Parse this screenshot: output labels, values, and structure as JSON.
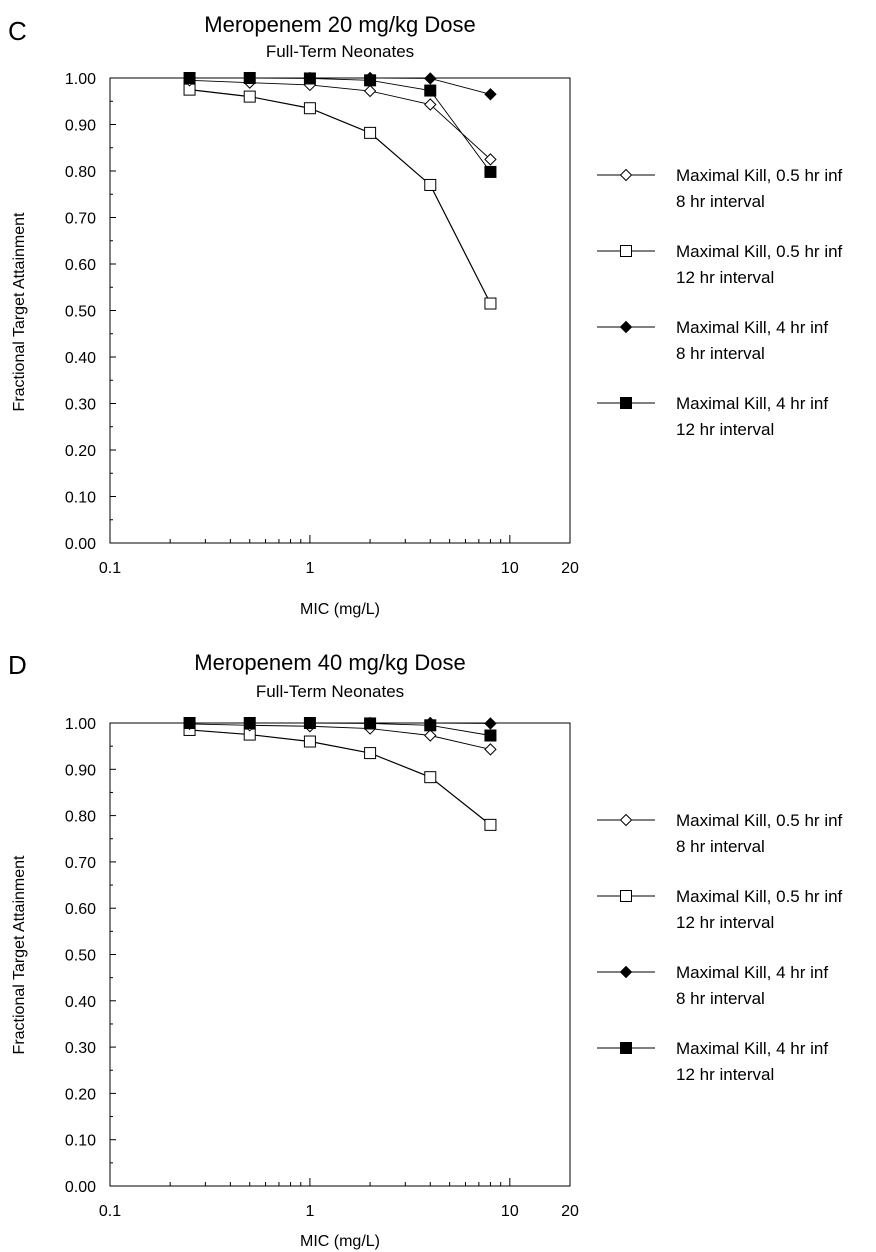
{
  "chart_data": [
    {
      "type": "line",
      "panel_label": "C",
      "title": "Meropenem 20 mg/kg Dose",
      "subtitle": "Full-Term Neonates",
      "xlabel": "MIC (mg/L)",
      "ylabel": "Fractional Target Attainment",
      "x_scale": "log",
      "xlim": [
        0.1,
        20
      ],
      "ylim": [
        0,
        1
      ],
      "x_tick_labels": [
        "0.1",
        "1",
        "10",
        "20"
      ],
      "y_tick_labels": [
        "0.00",
        "0.10",
        "0.20",
        "0.30",
        "0.40",
        "0.50",
        "0.60",
        "0.70",
        "0.80",
        "0.90",
        "1.00"
      ],
      "grid": false,
      "legend_position": "right",
      "x": [
        0.25,
        0.5,
        1,
        2,
        4,
        8
      ],
      "series": [
        {
          "name": "Maximal Kill, 0.5 hr inf",
          "name_line2": "8 hr interval",
          "marker": "diamond-open",
          "values": [
            0.995,
            0.99,
            0.985,
            0.972,
            0.943,
            0.825
          ]
        },
        {
          "name": "Maximal Kill, 0.5 hr inf",
          "name_line2": "12 hr interval",
          "marker": "square-open",
          "values": [
            0.975,
            0.96,
            0.935,
            0.882,
            0.77,
            0.515
          ]
        },
        {
          "name": "Maximal Kill, 4 hr inf",
          "name_line2": "8 hr interval",
          "marker": "diamond-filled",
          "values": [
            1.0,
            1.0,
            1.0,
            1.0,
            0.999,
            0.965
          ]
        },
        {
          "name": "Maximal Kill, 4 hr inf",
          "name_line2": "12 hr interval",
          "marker": "square-filled",
          "values": [
            1.0,
            1.0,
            0.999,
            0.995,
            0.973,
            0.798
          ]
        }
      ]
    },
    {
      "type": "line",
      "panel_label": "D",
      "title": "Meropenem 40 mg/kg Dose",
      "subtitle": "Full-Term Neonates",
      "xlabel": "MIC (mg/L)",
      "ylabel": "Fractional Target Attainment",
      "x_scale": "log",
      "xlim": [
        0.1,
        20
      ],
      "ylim": [
        0,
        1
      ],
      "x_tick_labels": [
        "0.1",
        "1",
        "10",
        "20"
      ],
      "y_tick_labels": [
        "0.00",
        "0.10",
        "0.20",
        "0.30",
        "0.40",
        "0.50",
        "0.60",
        "0.70",
        "0.80",
        "0.90",
        "1.00"
      ],
      "grid": false,
      "legend_position": "right",
      "x": [
        0.25,
        0.5,
        1,
        2,
        4,
        8
      ],
      "series": [
        {
          "name": "Maximal Kill, 0.5 hr inf",
          "name_line2": "8 hr interval",
          "marker": "diamond-open",
          "values": [
            0.998,
            0.995,
            0.993,
            0.988,
            0.973,
            0.943
          ]
        },
        {
          "name": "Maximal Kill, 0.5 hr inf",
          "name_line2": "12 hr interval",
          "marker": "square-open",
          "values": [
            0.985,
            0.975,
            0.96,
            0.935,
            0.883,
            0.78
          ]
        },
        {
          "name": "Maximal Kill, 4 hr inf",
          "name_line2": "8 hr interval",
          "marker": "diamond-filled",
          "values": [
            1.0,
            1.0,
            1.0,
            1.0,
            1.0,
            0.999
          ]
        },
        {
          "name": "Maximal Kill, 4 hr inf",
          "name_line2": "12 hr interval",
          "marker": "square-filled",
          "values": [
            1.0,
            1.0,
            1.0,
            0.999,
            0.995,
            0.973
          ]
        }
      ]
    }
  ]
}
